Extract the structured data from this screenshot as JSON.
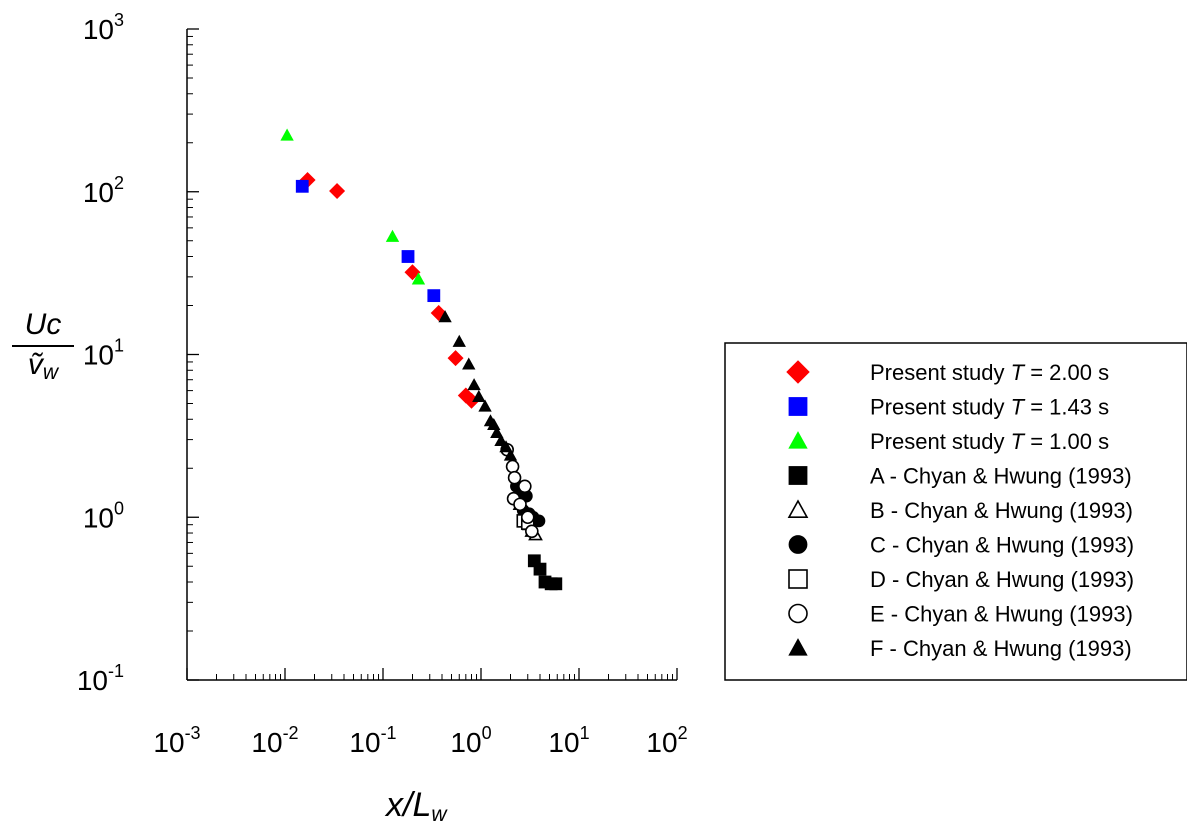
{
  "chart_data": {
    "type": "scatter",
    "xlabel": {
      "main": "x/L",
      "sub": "w"
    },
    "ylabel": {
      "numerator": "Uc",
      "denominator": "ṽ",
      "denominator_sub": "w"
    },
    "x_scale": "log",
    "y_scale": "log",
    "xlim": [
      0.001,
      100
    ],
    "ylim": [
      0.1,
      1000
    ],
    "x_ticks": [
      {
        "base": "10",
        "exp": "-3",
        "value": 0.001
      },
      {
        "base": "10",
        "exp": "-2",
        "value": 0.01
      },
      {
        "base": "10",
        "exp": "-1",
        "value": 0.1
      },
      {
        "base": "10",
        "exp": "0",
        "value": 1
      },
      {
        "base": "10",
        "exp": "1",
        "value": 10
      },
      {
        "base": "10",
        "exp": "2",
        "value": 100
      }
    ],
    "y_ticks": [
      {
        "base": "10",
        "exp": "-1",
        "value": 0.1
      },
      {
        "base": "10",
        "exp": "0",
        "value": 1
      },
      {
        "base": "10",
        "exp": "1",
        "value": 10
      },
      {
        "base": "10",
        "exp": "2",
        "value": 100
      },
      {
        "base": "10",
        "exp": "3",
        "value": 1000
      }
    ],
    "grid": false,
    "legend_position": "right",
    "series": [
      {
        "name": "Present study T = 2.00 s",
        "label_parts": [
          "Present study ",
          "T",
          " = 2.00 s"
        ],
        "marker": "diamond",
        "filled": true,
        "color": "#ff0000",
        "points": [
          [
            0.017,
            118
          ],
          [
            0.034,
            101
          ],
          [
            0.2,
            32
          ],
          [
            0.37,
            18
          ],
          [
            0.55,
            9.5
          ],
          [
            0.7,
            5.6
          ],
          [
            0.8,
            5.2
          ]
        ]
      },
      {
        "name": "Present study T = 1.43 s",
        "label_parts": [
          "Present study ",
          "T",
          " = 1.43 s"
        ],
        "marker": "square",
        "filled": true,
        "color": "#0000ff",
        "points": [
          [
            0.015,
            108
          ],
          [
            0.18,
            40
          ],
          [
            0.33,
            23
          ]
        ]
      },
      {
        "name": "Present study T = 1.00 s",
        "label_parts": [
          "Present study ",
          "T",
          " = 1.00 s"
        ],
        "marker": "triangle",
        "filled": true,
        "color": "#00ff00",
        "points": [
          [
            0.0105,
            222
          ],
          [
            0.125,
            53
          ],
          [
            0.23,
            29
          ]
        ]
      },
      {
        "name": "A - Chyan & Hwung (1993)",
        "marker": "square",
        "filled": true,
        "color": "#000000",
        "points": [
          [
            3.5,
            0.54
          ],
          [
            4.0,
            0.48
          ],
          [
            4.5,
            0.4
          ],
          [
            5.2,
            0.39
          ],
          [
            5.8,
            0.39
          ]
        ]
      },
      {
        "name": "B - Chyan & Hwung (1993)",
        "marker": "triangle",
        "filled": false,
        "color": "#000000",
        "points": [
          [
            2.5,
            1.2
          ],
          [
            2.8,
            0.95
          ],
          [
            3.1,
            0.9
          ],
          [
            3.3,
            0.82
          ],
          [
            3.6,
            0.78
          ]
        ]
      },
      {
        "name": "C - Chyan & Hwung (1993)",
        "marker": "circle",
        "filled": true,
        "color": "#000000",
        "points": [
          [
            2.3,
            1.55
          ],
          [
            2.6,
            1.45
          ],
          [
            2.9,
            1.35
          ],
          [
            3.1,
            1.05
          ],
          [
            3.4,
            1.0
          ],
          [
            3.9,
            0.95
          ],
          [
            2.7,
            1.1
          ]
        ]
      },
      {
        "name": "D - Chyan & Hwung (1993)",
        "marker": "square",
        "filled": false,
        "color": "#000000",
        "points": [
          [
            2.7,
            0.95
          ],
          [
            3.0,
            0.92
          ]
        ]
      },
      {
        "name": "E - Chyan & Hwung (1993)",
        "marker": "circle",
        "filled": false,
        "color": "#000000",
        "points": [
          [
            2.1,
            2.05
          ],
          [
            2.2,
            1.75
          ],
          [
            2.15,
            1.3
          ],
          [
            2.5,
            1.2
          ],
          [
            2.8,
            1.55
          ],
          [
            3.0,
            1.0
          ],
          [
            3.3,
            0.82
          ],
          [
            1.85,
            2.6
          ]
        ]
      },
      {
        "name": "F - Chyan & Hwung (1993)",
        "marker": "triangle",
        "filled": true,
        "color": "#000000",
        "points": [
          [
            0.43,
            17
          ],
          [
            0.6,
            12
          ],
          [
            0.75,
            8.7
          ],
          [
            0.85,
            6.5
          ],
          [
            0.95,
            5.5
          ],
          [
            1.1,
            4.8
          ],
          [
            1.25,
            3.9
          ],
          [
            1.35,
            3.7
          ],
          [
            1.45,
            3.3
          ],
          [
            1.6,
            2.95
          ],
          [
            1.8,
            2.7
          ],
          [
            2.0,
            2.4
          ]
        ]
      }
    ]
  }
}
